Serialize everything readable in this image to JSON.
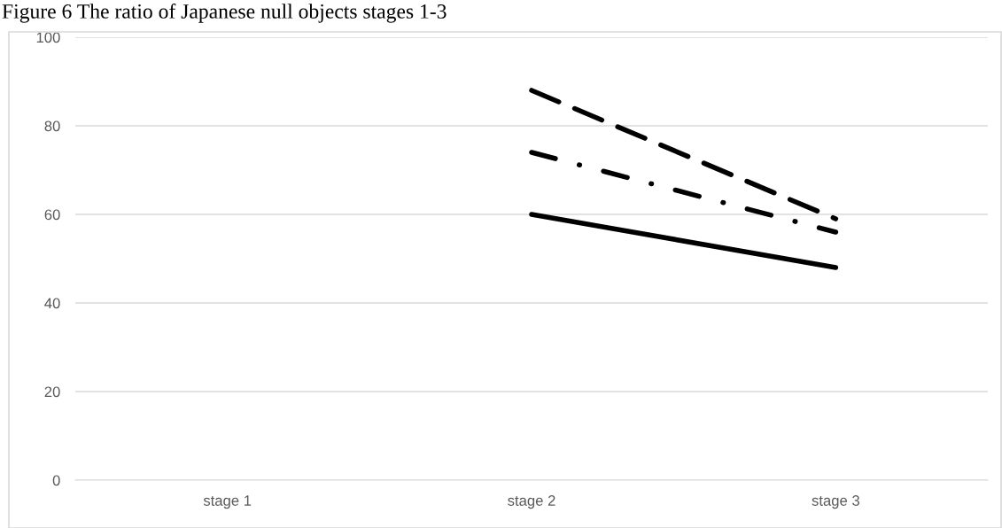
{
  "chart_data": {
    "type": "line",
    "title": "Figure 6 The ratio of Japanese null objects stages 1-3",
    "categories": [
      "stage 1",
      "stage 2",
      "stage 3"
    ],
    "series": [
      {
        "color": "#000000",
        "line_style": "dashed",
        "values": [
          null,
          88,
          59
        ]
      },
      {
        "color": "#000000",
        "line_style": "dashdot",
        "values": [
          null,
          74,
          56
        ]
      },
      {
        "color": "#000000",
        "line_style": "solid",
        "values": [
          null,
          60,
          48
        ]
      }
    ],
    "ylim": [
      0,
      100
    ],
    "yticks": [
      0,
      20,
      40,
      60,
      80,
      100
    ],
    "grid": "y",
    "legend": false,
    "marker": "none"
  }
}
